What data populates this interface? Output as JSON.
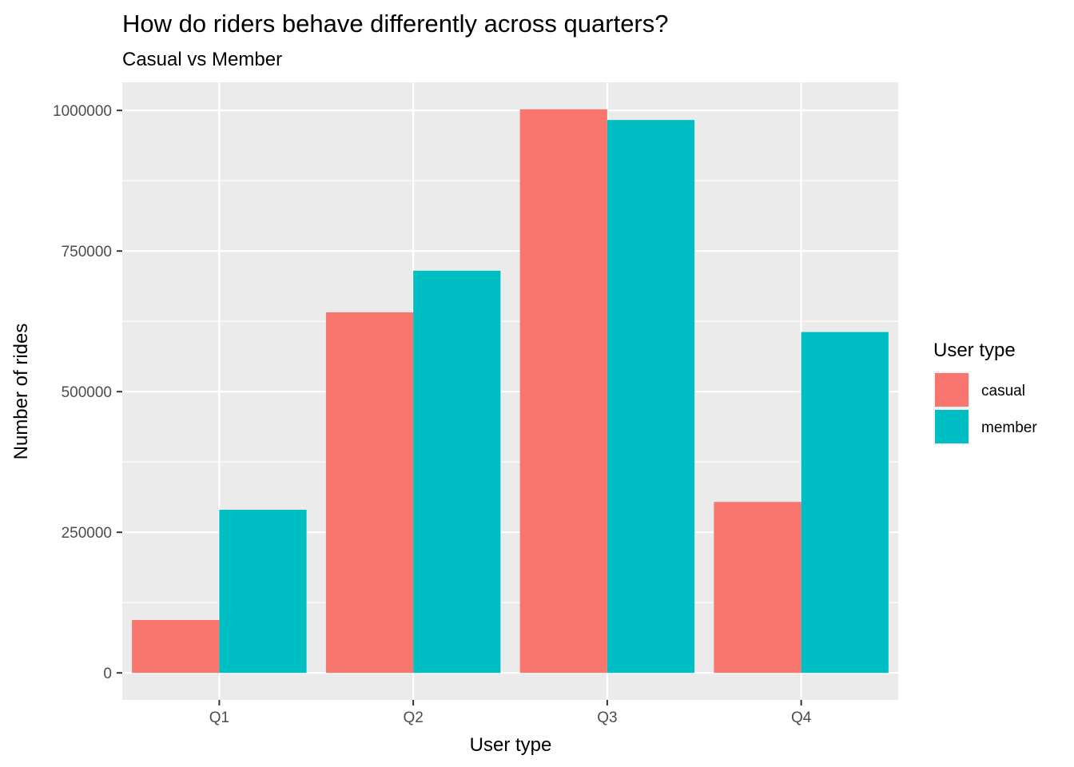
{
  "chart_data": {
    "type": "bar",
    "title": "How do riders behave differently across quarters?",
    "subtitle": "Casual vs Member",
    "xlabel": "User type",
    "ylabel": "Number of rides",
    "categories": [
      "Q1",
      "Q2",
      "Q3",
      "Q4"
    ],
    "series": [
      {
        "name": "casual",
        "color": "#F8766D",
        "values": [
          94000,
          641000,
          1002000,
          304000
        ]
      },
      {
        "name": "member",
        "color": "#00BFC4",
        "values": [
          290000,
          715000,
          983000,
          606000
        ]
      }
    ],
    "ylim": [
      -48000,
      1050000
    ],
    "yticks": [
      0,
      250000,
      500000,
      750000,
      1000000
    ],
    "ytick_labels": [
      "0",
      "250000",
      "500000",
      "750000",
      "1000000"
    ],
    "legend": {
      "title": "User type",
      "position": "right"
    },
    "grid": true,
    "colors": {
      "panel": "#EBEBEB",
      "grid": "#FFFFFF"
    }
  }
}
